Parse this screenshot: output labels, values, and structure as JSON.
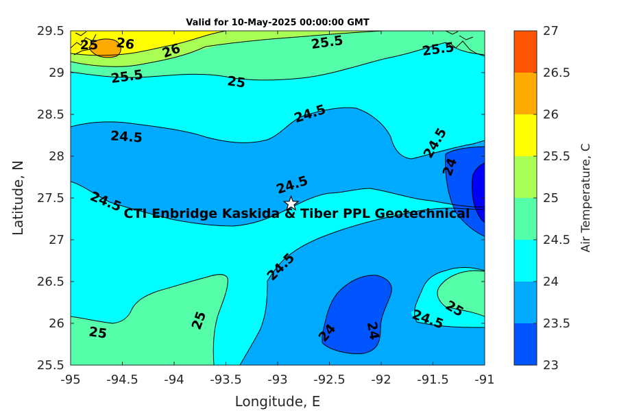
{
  "title": "Valid for 10-May-2025 00:00:00 GMT",
  "x_axis": {
    "label": "Longitude, E",
    "ticks": [
      "-95",
      "-94.5",
      "-94",
      "-93.5",
      "-93",
      "-92.5",
      "-92",
      "-91.5",
      "-91"
    ]
  },
  "y_axis": {
    "label": "Latitude, N",
    "ticks": [
      "29.5",
      "29",
      "28.5",
      "28",
      "27.5",
      "27",
      "26.5",
      "26",
      "25.5"
    ]
  },
  "colorbar": {
    "label": "Air Temperature, C",
    "ticks": [
      "27",
      "26.5",
      "26",
      "25.5",
      "25",
      "24.5",
      "24",
      "23.5",
      "23"
    ],
    "colors": [
      "#ff5500",
      "#ffaa00",
      "#ffff00",
      "#aaff55",
      "#55ffaa",
      "#00ffff",
      "#00aaff",
      "#0055ff",
      "#0000ff"
    ]
  },
  "site": {
    "name": "CTI Enbridge  Kaskida & Tiber PPL Geotechnical",
    "lon": -92.87,
    "lat": 27.43
  },
  "contour_labels": [
    "26",
    "26",
    "25.5",
    "25.5",
    "25.5",
    "25",
    "25",
    "24.5",
    "24.5",
    "24.5",
    "24.5",
    "24.5",
    "24.5",
    "24",
    "25",
    "25",
    "24",
    "24",
    "25",
    "24.5"
  ],
  "chart_data": {
    "type": "heatmap",
    "title": "Valid for 10-May-2025 00:00:00 GMT",
    "xlabel": "Longitude, E",
    "ylabel": "Latitude, N",
    "xlim": [
      -95,
      -91
    ],
    "ylim": [
      25.5,
      29.5
    ],
    "levels": [
      23,
      23.5,
      24,
      24.5,
      25,
      25.5,
      26,
      26.5,
      27
    ],
    "colorbar_label": "Air Temperature, C",
    "marker": {
      "name": "CTI Enbridge  Kaskida & Tiber PPL Geotechnical",
      "lon": -92.87,
      "lat": 27.43
    }
  }
}
